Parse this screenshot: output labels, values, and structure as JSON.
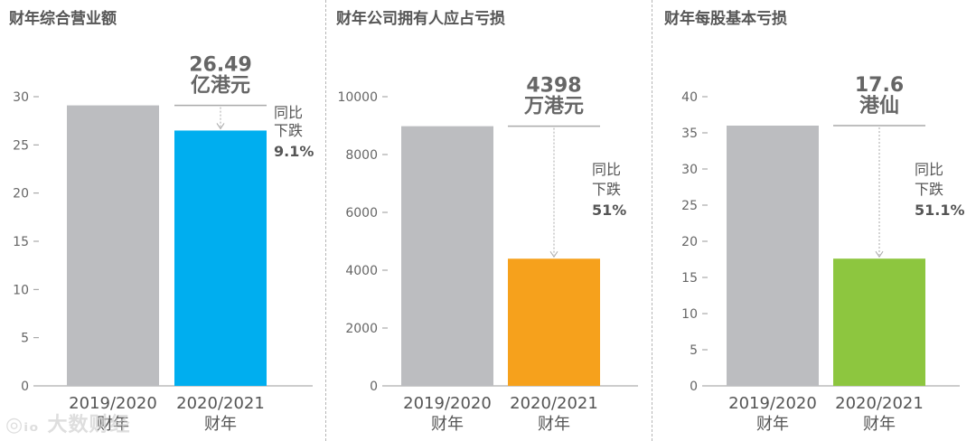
{
  "colors": {
    "prev_bar": "#bcbdc0",
    "axis": "#999999",
    "arrow": "#aaaaaa",
    "line": "#aaaaaa"
  },
  "watermark_icon": "logo-icon",
  "watermark_text": "大数财经",
  "chart_data": [
    {
      "type": "bar",
      "title": "财年综合营业额",
      "categories": [
        [
          "2019/2020",
          "财年"
        ],
        [
          "2020/2021",
          "财年"
        ]
      ],
      "values": [
        29.1,
        26.49
      ],
      "colors": [
        "#bcbdc0",
        "#00aeef"
      ],
      "ylim": [
        0,
        30
      ],
      "yticks": [
        "0",
        "5",
        "10",
        "15",
        "20",
        "25",
        "30"
      ],
      "ytick_values": [
        0,
        5,
        10,
        15,
        20,
        25,
        30
      ],
      "value_label": [
        "26.49",
        "亿港元"
      ],
      "change_label": [
        "同比",
        "下跌",
        "9.1%"
      ]
    },
    {
      "type": "bar",
      "title": "财年公司拥有人应占亏损",
      "categories": [
        [
          "2019/2020",
          "财年"
        ],
        [
          "2020/2021",
          "财年"
        ]
      ],
      "values": [
        8980,
        4398
      ],
      "colors": [
        "#bcbdc0",
        "#f6a11c"
      ],
      "ylim": [
        0,
        10000
      ],
      "yticks": [
        "0",
        "2000",
        "4000",
        "6000",
        "8000",
        "10000"
      ],
      "ytick_values": [
        0,
        2000,
        4000,
        6000,
        8000,
        10000
      ],
      "value_label": [
        "4398",
        "万港元"
      ],
      "change_label": [
        "同比",
        "下跌",
        "51%"
      ]
    },
    {
      "type": "bar",
      "title": "财年每股基本亏损",
      "categories": [
        [
          "2019/2020",
          "财年"
        ],
        [
          "2020/2021",
          "财年"
        ]
      ],
      "values": [
        36,
        17.6
      ],
      "colors": [
        "#bcbdc0",
        "#8dc63f"
      ],
      "ylim": [
        0,
        40
      ],
      "yticks": [
        "0",
        "5",
        "10",
        "15",
        "20",
        "25",
        "30",
        "35",
        "40"
      ],
      "ytick_values": [
        0,
        5,
        10,
        15,
        20,
        25,
        30,
        35,
        40
      ],
      "value_label": [
        "17.6",
        "港仙"
      ],
      "change_label": [
        "同比",
        "下跌",
        "51.1%"
      ]
    }
  ]
}
